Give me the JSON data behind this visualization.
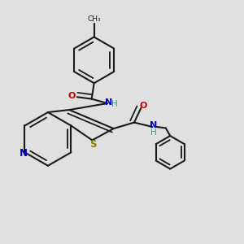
{
  "background_color": "#e0e0e0",
  "bond_color": "#1a1a1a",
  "N_color": "#0000cc",
  "O_color": "#cc0000",
  "S_color": "#8B8000",
  "H_color": "#4a9090",
  "figsize": [
    3.0,
    3.0
  ],
  "dpi": 100,
  "lw": 1.5,
  "lw_inner": 1.2,
  "xlim": [
    0.0,
    1.0
  ],
  "ylim": [
    0.0,
    1.0
  ]
}
